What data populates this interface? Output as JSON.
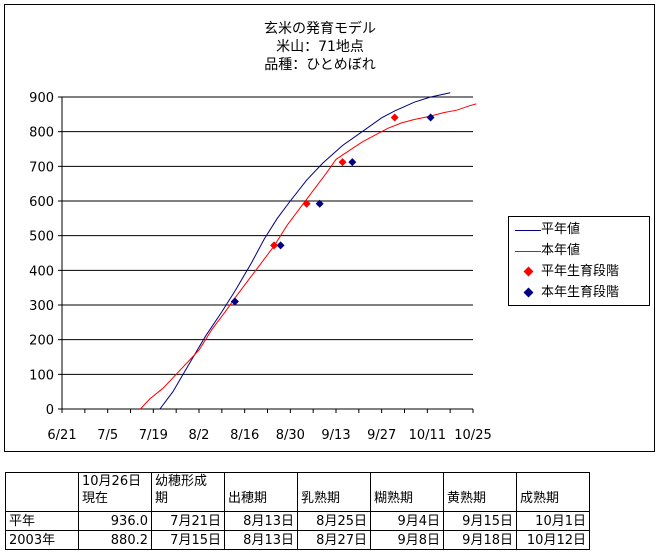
{
  "chart_data": {
    "type": "line",
    "title_lines": [
      "玄米の発育モデル",
      "米山：71地点",
      "品種：ひとめぼれ"
    ],
    "x_tick_labels": [
      "6/21",
      "7/5",
      "7/19",
      "8/2",
      "8/16",
      "8/30",
      "9/13",
      "9/27",
      "10/11",
      "10/25"
    ],
    "x_range": [
      "6/21",
      "10/25"
    ],
    "ylim": [
      0,
      900
    ],
    "y_ticks": [
      0,
      100,
      200,
      300,
      400,
      500,
      600,
      700,
      800,
      900
    ],
    "grid": "horizontal",
    "legend_position": "right",
    "series": [
      {
        "name": "平年値",
        "kind": "line",
        "color": "#000080",
        "points": [
          [
            "7/21",
            0
          ],
          [
            "7/25",
            50
          ],
          [
            "7/30",
            130
          ],
          [
            "8/4",
            210
          ],
          [
            "8/9",
            280
          ],
          [
            "8/13",
            340
          ],
          [
            "8/18",
            420
          ],
          [
            "8/22",
            490
          ],
          [
            "8/26",
            550
          ],
          [
            "8/30",
            600
          ],
          [
            "9/4",
            660
          ],
          [
            "9/9",
            710
          ],
          [
            "9/15",
            760
          ],
          [
            "9/21",
            800
          ],
          [
            "9/27",
            840
          ],
          [
            "10/1",
            860
          ],
          [
            "10/7",
            885
          ],
          [
            "10/12",
            900
          ],
          [
            "10/18",
            912
          ]
        ]
      },
      {
        "name": "本年値",
        "kind": "line",
        "color": "#ff0000",
        "points": [
          [
            "7/15",
            0
          ],
          [
            "7/18",
            30
          ],
          [
            "7/22",
            60
          ],
          [
            "7/26",
            100
          ],
          [
            "7/30",
            140
          ],
          [
            "8/2",
            170
          ],
          [
            "8/6",
            230
          ],
          [
            "8/10",
            280
          ],
          [
            "8/13",
            320
          ],
          [
            "8/17",
            370
          ],
          [
            "8/21",
            420
          ],
          [
            "8/25",
            470
          ],
          [
            "8/29",
            530
          ],
          [
            "9/2",
            580
          ],
          [
            "9/6",
            630
          ],
          [
            "9/10",
            680
          ],
          [
            "9/13",
            720
          ],
          [
            "9/17",
            745
          ],
          [
            "9/21",
            770
          ],
          [
            "9/25",
            790
          ],
          [
            "9/29",
            810
          ],
          [
            "10/3",
            825
          ],
          [
            "10/7",
            835
          ],
          [
            "10/12",
            845
          ],
          [
            "10/16",
            855
          ],
          [
            "10/20",
            862
          ],
          [
            "10/24",
            875
          ],
          [
            "10/26",
            880
          ]
        ]
      },
      {
        "name": "平年生育段階",
        "kind": "marker",
        "color": "#ff0000",
        "points": [
          [
            "8/13",
            310
          ],
          [
            "8/25",
            472
          ],
          [
            "9/4",
            592
          ],
          [
            "9/15",
            712
          ],
          [
            "10/1",
            841
          ]
        ]
      },
      {
        "name": "本年生育段階",
        "kind": "marker",
        "color": "#000080",
        "points": [
          [
            "8/13",
            310
          ],
          [
            "8/27",
            472
          ],
          [
            "9/8",
            592
          ],
          [
            "9/18",
            712
          ],
          [
            "10/12",
            841
          ]
        ]
      }
    ]
  },
  "table": {
    "headers": [
      {
        "line1": "",
        "line2": ""
      },
      {
        "line1": "10月26日",
        "line2": "現在"
      },
      {
        "line1": "幼穂形成",
        "line2": "期"
      },
      {
        "line1": "出穂期",
        "line2": ""
      },
      {
        "line1": "乳熟期",
        "line2": ""
      },
      {
        "line1": "糊熟期",
        "line2": ""
      },
      {
        "line1": "黄熟期",
        "line2": ""
      },
      {
        "line1": "成熟期",
        "line2": ""
      }
    ],
    "rows": [
      [
        "平年",
        "936.0",
        "7月21日",
        "8月13日",
        "8月25日",
        "9月4日",
        "9月15日",
        "10月1日"
      ],
      [
        "2003年",
        "880.2",
        "7月15日",
        "8月13日",
        "8月27日",
        "9月8日",
        "9月18日",
        "10月12日"
      ]
    ]
  }
}
